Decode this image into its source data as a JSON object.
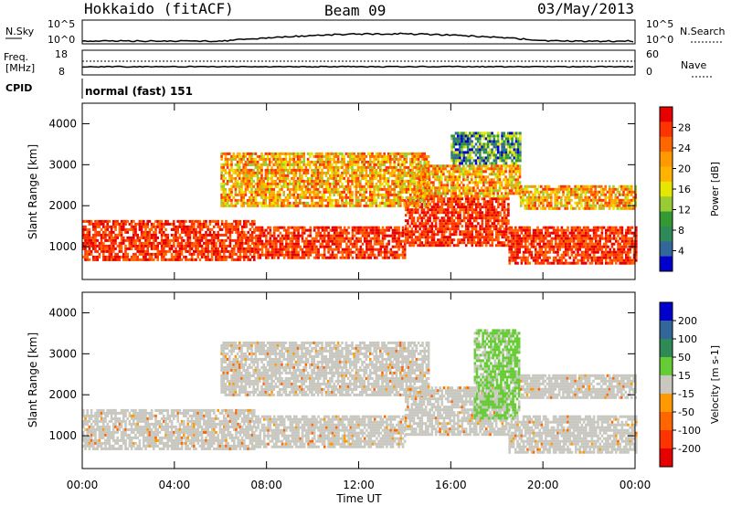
{
  "header": {
    "title": "Hokkaido (fitACF)",
    "beam": "Beam 09",
    "date": "03/May/2013"
  },
  "panels": {
    "noise": {
      "left_label": "N.Sky",
      "left_ticks": [
        "10^5",
        "10^0"
      ],
      "right_ticks": [
        "10^5",
        "10^0"
      ],
      "right_label": "N.Search"
    },
    "freq": {
      "left_label": "Freq.",
      "left_unit": "[MHz]",
      "left_ticks": [
        "18",
        "8"
      ],
      "right_ticks": [
        "60",
        "0"
      ],
      "right_label": "Nave"
    },
    "cpid": {
      "label": "CPID",
      "value": "normal (fast) 151"
    }
  },
  "chart_data": [
    {
      "type": "heatmap",
      "name": "power",
      "ylabel": "Slant Range [km]",
      "xlabel": "",
      "ylim": [
        200,
        4500
      ],
      "yticks": [
        "1000",
        "2000",
        "3000",
        "4000"
      ],
      "xlim_hours": [
        0,
        24
      ],
      "colorbar": {
        "label": "Power [dB]",
        "ticks": [
          "28",
          "24",
          "20",
          "16",
          "12",
          "8",
          "4"
        ],
        "colors": [
          "#e60000",
          "#ff3300",
          "#ff6600",
          "#ff9900",
          "#ffb300",
          "#e6e600",
          "#99cc33",
          "#339933",
          "#2e8b57",
          "#336699",
          "#0000cc"
        ]
      },
      "bands": [
        {
          "t0": 0,
          "t1": 7.5,
          "r0": 700,
          "r1": 1650,
          "level": "high"
        },
        {
          "t0": 7.5,
          "t1": 14,
          "r0": 700,
          "r1": 1500,
          "level": "high"
        },
        {
          "t0": 14,
          "t1": 18.5,
          "r0": 1000,
          "r1": 2200,
          "level": "high"
        },
        {
          "t0": 18.5,
          "t1": 24,
          "r0": 600,
          "r1": 1500,
          "level": "high"
        },
        {
          "t0": 6,
          "t1": 15,
          "r0": 2000,
          "r1": 3300,
          "level": "mid"
        },
        {
          "t0": 14.5,
          "t1": 19,
          "r0": 2200,
          "r1": 3000,
          "level": "mid"
        },
        {
          "t0": 19,
          "t1": 24,
          "r0": 1900,
          "r1": 2500,
          "level": "mid"
        },
        {
          "t0": 16,
          "t1": 19,
          "r0": 3000,
          "r1": 3800,
          "level": "low"
        }
      ]
    },
    {
      "type": "heatmap",
      "name": "velocity",
      "ylabel": "Slant Range [km]",
      "xlabel": "Time UT",
      "ylim": [
        200,
        4500
      ],
      "yticks": [
        "1000",
        "2000",
        "3000",
        "4000"
      ],
      "xlim_hours": [
        0,
        24
      ],
      "xticks": [
        "00:00",
        "04:00",
        "08:00",
        "12:00",
        "16:00",
        "20:00",
        "00:00"
      ],
      "colorbar": {
        "label": "Velocity [m s-1]",
        "ticks": [
          "200",
          "100",
          "50",
          "15",
          "-15",
          "-50",
          "-100",
          "-200"
        ],
        "colors": [
          "#0000cc",
          "#336699",
          "#2e8b57",
          "#66cc33",
          "#c8c8c0",
          "#ff9900",
          "#ff6600",
          "#ff3300",
          "#e60000"
        ]
      },
      "bands": [
        {
          "t0": 0,
          "t1": 7.5,
          "r0": 700,
          "r1": 1650,
          "level": "ground"
        },
        {
          "t0": 7.5,
          "t1": 14,
          "r0": 700,
          "r1": 1500,
          "level": "ground"
        },
        {
          "t0": 14,
          "t1": 18.5,
          "r0": 1000,
          "r1": 2200,
          "level": "ground"
        },
        {
          "t0": 18.5,
          "t1": 24,
          "r0": 600,
          "r1": 1500,
          "level": "ground"
        },
        {
          "t0": 6,
          "t1": 15,
          "r0": 2000,
          "r1": 3300,
          "level": "ground"
        },
        {
          "t0": 17,
          "t1": 19,
          "r0": 1400,
          "r1": 3600,
          "level": "pos"
        },
        {
          "t0": 19,
          "t1": 24,
          "r0": 1900,
          "r1": 2500,
          "level": "ground"
        }
      ]
    }
  ]
}
